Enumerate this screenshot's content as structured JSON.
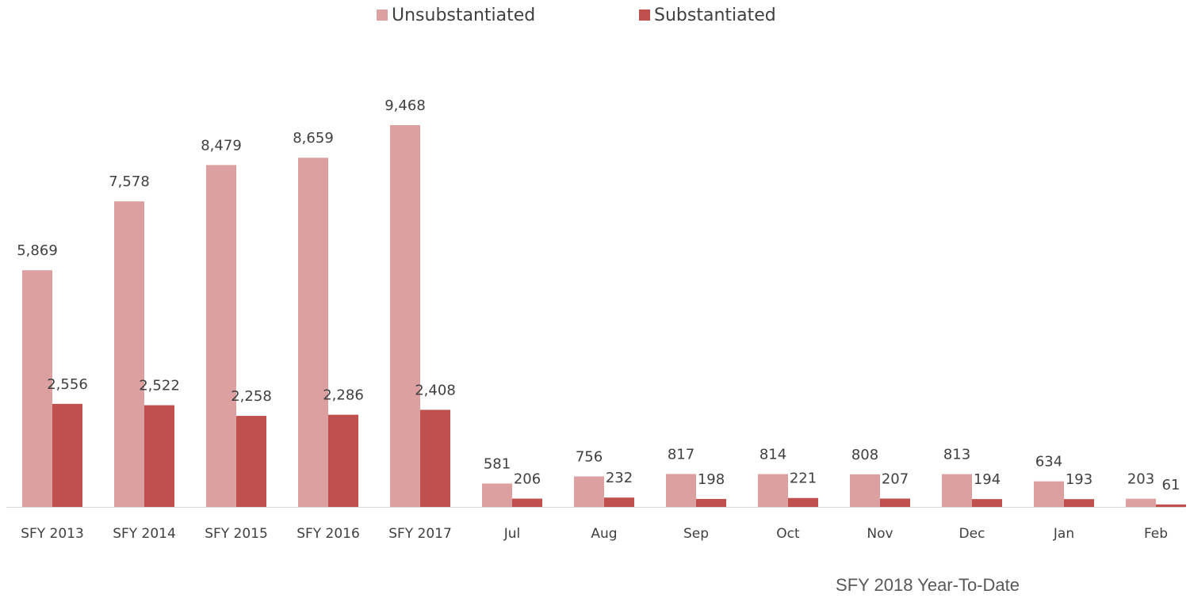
{
  "chart_data": {
    "type": "bar",
    "categories": [
      "SFY 2013",
      "SFY 2014",
      "SFY 2015",
      "SFY 2016",
      "SFY 2017",
      "Jul",
      "Aug",
      "Sep",
      "Oct",
      "Nov",
      "Dec",
      "Jan",
      "Feb"
    ],
    "series": [
      {
        "name": "Unsubstantiated",
        "color": "#dda0a0",
        "values": [
          5869,
          7578,
          8479,
          8659,
          9468,
          581,
          756,
          817,
          814,
          808,
          813,
          634,
          203
        ],
        "value_labels": [
          "5,869",
          "7,578",
          "8,479",
          "8,659",
          "9,468",
          "581",
          "756",
          "817",
          "814",
          "808",
          "813",
          "634",
          "203"
        ]
      },
      {
        "name": "Substantiated",
        "color": "#c0504d",
        "values": [
          2556,
          2522,
          2258,
          2286,
          2408,
          206,
          232,
          198,
          221,
          207,
          194,
          193,
          61
        ],
        "value_labels": [
          "2,556",
          "2,522",
          "2,258",
          "2,286",
          "2,408",
          "206",
          "232",
          "198",
          "221",
          "207",
          "194",
          "193",
          "61"
        ]
      }
    ],
    "legend": "top",
    "annotation": "SFY 2018 Year-To-Date"
  }
}
